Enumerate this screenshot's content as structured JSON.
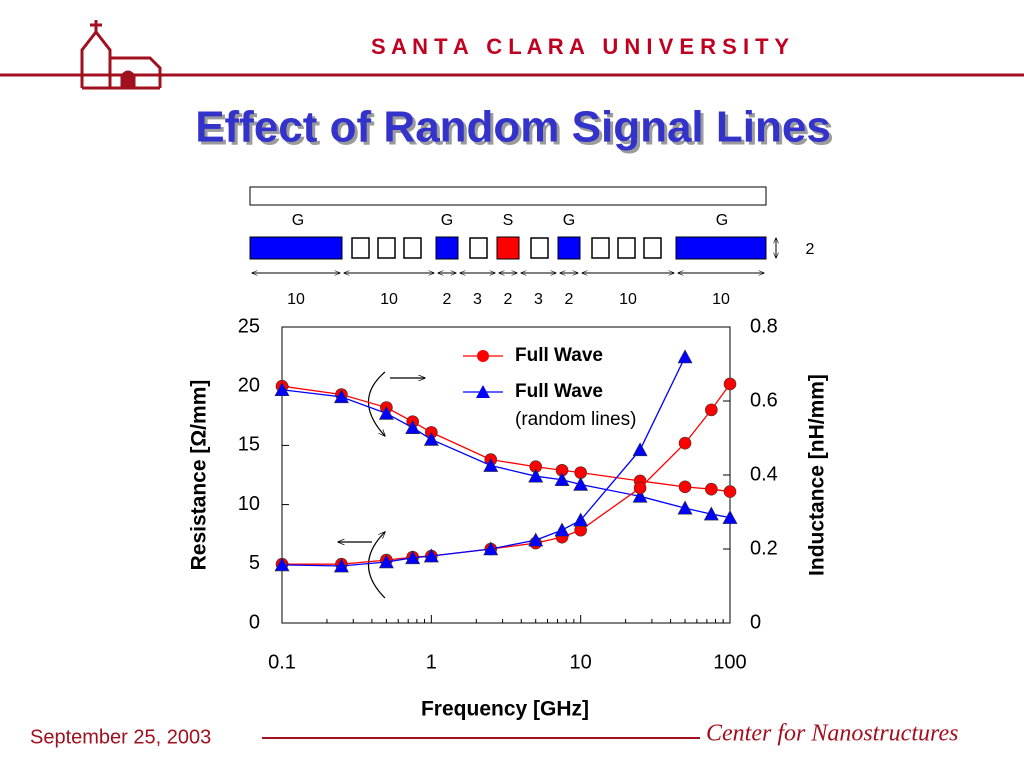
{
  "header": {
    "institution": "S A N T A   C L A R A   U N I V E R S I T Y",
    "title": "Effect of Random Signal Lines"
  },
  "footer": {
    "date": "September 25, 2003",
    "center": "Center for Nanostructures"
  },
  "diagram": {
    "labels": [
      "G",
      "G",
      "S",
      "G",
      "G"
    ],
    "dimensions": [
      10,
      10,
      2,
      3,
      2,
      3,
      2,
      10,
      10
    ],
    "thickness": 2
  },
  "chart_data": {
    "type": "line",
    "log_x": true,
    "x_label": "Frequency [GHz]",
    "y_label": "Resistance [Ω/mm]",
    "y2_label": "Inductance [nH/mm]",
    "x": [
      0.1,
      0.25,
      0.5,
      0.75,
      1,
      2.5,
      5,
      7.5,
      10,
      25,
      50,
      75,
      100
    ],
    "xlim": [
      0.1,
      100
    ],
    "xticks": [
      0.1,
      1,
      10,
      100
    ],
    "ylim": [
      0,
      25
    ],
    "yticks": [
      0,
      5,
      10,
      15,
      20,
      25
    ],
    "y2lim": [
      0,
      0.8
    ],
    "y2ticks": [
      0,
      0.2,
      0.4,
      0.6,
      0.8
    ],
    "legend": [
      {
        "label": "Full Wave",
        "color": "#ff0000",
        "marker": "circle"
      },
      {
        "label": "Full Wave",
        "sublabel": "(random lines)",
        "color": "#0000ff",
        "marker": "triangle"
      }
    ],
    "series": [
      {
        "color": "#ff0000",
        "marker": "circle",
        "axis": "y",
        "values": [
          20.0,
          19.3,
          18.2,
          17.0,
          16.1,
          13.8,
          13.2,
          12.9,
          12.7,
          12.0,
          11.5,
          11.3,
          11.1
        ]
      },
      {
        "color": "#0000ff",
        "marker": "triangle",
        "axis": "y",
        "values": [
          19.7,
          19.1,
          17.7,
          16.5,
          15.5,
          13.3,
          12.4,
          12.1,
          11.7,
          10.7,
          9.7,
          9.2,
          8.9
        ]
      },
      {
        "color": "#ff0000",
        "marker": "circle",
        "axis": "y2",
        "values": [
          0.159,
          0.159,
          0.17,
          0.178,
          0.181,
          0.2,
          0.216,
          0.232,
          0.251,
          0.365,
          0.486,
          0.576,
          0.646
        ]
      },
      {
        "color": "#0000ff",
        "marker": "triangle",
        "axis": "y2",
        "values": [
          0.157,
          0.154,
          0.165,
          0.176,
          0.181,
          0.2,
          0.224,
          0.251,
          0.278,
          0.468,
          0.719,
          null,
          null
        ]
      }
    ]
  }
}
